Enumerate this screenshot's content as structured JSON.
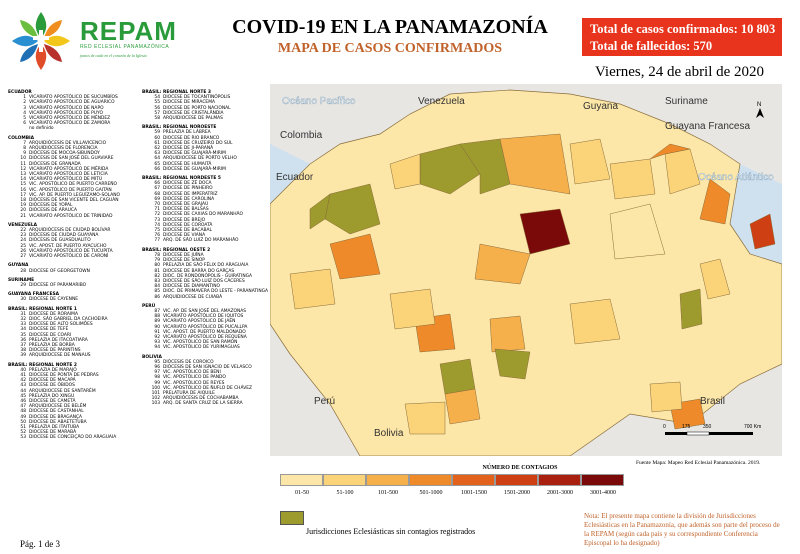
{
  "header": {
    "brand": "REPAM",
    "brand_subtitle": "RED ECLESIAL PANAMAZÓNICA",
    "brand_tagline": "juntos de cada en el corazón de la Iglesia",
    "title": "COVID-19 EN LA PANAMAZONÍA",
    "subtitle": "MAPA DE CASOS CONFIRMADOS",
    "total_cases": "Total de casos confirmados: 10 803",
    "total_deaths": "Total de fallecidos: 570",
    "date": "Viernes, 24 de abril de 2020"
  },
  "colors": {
    "brand_green": "#2a9b3a",
    "accent_red": "#e8341c",
    "subtitle_orange": "#c0622a",
    "no_case": "#9d9a2e"
  },
  "legend_list": {
    "col1": [
      {
        "type": "sec",
        "text": "ECUADOR"
      },
      {
        "n": "1",
        "t": "VICARIATO APOSTÓLICO DE SUCUMBÍOS"
      },
      {
        "n": "2",
        "t": "VICARIATO APOSTÓLICO DE AGUARICO"
      },
      {
        "n": "3",
        "t": "VICARIATO APOSTÓLICO DE NAPO"
      },
      {
        "n": "4",
        "t": "VICARIATO APOSTÓLICO DE PUYO"
      },
      {
        "n": "5",
        "t": "VICARIATO APOSTÓLICO DE MÉNDEZ"
      },
      {
        "n": "6",
        "t": "VICARIATO APOSTÓLICO DE ZAMORA"
      },
      {
        "n": "",
        "t": "no definido"
      },
      {
        "type": "sec",
        "text": "COLOMBIA"
      },
      {
        "n": "7",
        "t": "ARQUIDIÓCESIS DE VILLAVICENCIO"
      },
      {
        "n": "8",
        "t": "ARQUIDIÓCESIS DE FLORENCIA"
      },
      {
        "n": "9",
        "t": "DIÓCESIS DE MOCOA-SIBUNDOY"
      },
      {
        "n": "10",
        "t": "DIÓCESIS DE SAN JOSÉ DEL GUAVIARE"
      },
      {
        "n": "11",
        "t": "DIÓCESIS DE GRANADA"
      },
      {
        "n": "12",
        "t": "VICARIATO APOSTÓLICO DE MÉRIDA"
      },
      {
        "n": "13",
        "t": "VICARIATO APOSTÓLICO DE LETICIA"
      },
      {
        "n": "14",
        "t": "VICARIATO APOSTÓLICO DE MITÚ"
      },
      {
        "n": "15",
        "t": "VIC. APOSTÓLICO DE PUERTO CARREÑO"
      },
      {
        "n": "16",
        "t": "VIC. APOSTÓLICO DE PUERTO GAITÁN"
      },
      {
        "n": "17",
        "t": "VIC. AP. DE PUERTO LEGUÍZAMO-SOLANO"
      },
      {
        "n": "18",
        "t": "DIÓCESIS DE SAN VICENTE DEL CAGUÁN"
      },
      {
        "n": "19",
        "t": "DIÓCESIS DE YOPAL"
      },
      {
        "n": "20",
        "t": "DIÓCESIS DE ARAUCA"
      },
      {
        "n": "21",
        "t": "VICARIATO APOSTÓLICO DE TRINIDAD"
      },
      {
        "type": "sec",
        "text": "VENEZUELA"
      },
      {
        "n": "22",
        "t": "ARQUIDIÓCESIS DE CIUDAD BOLÍVAR"
      },
      {
        "n": "23",
        "t": "DIÓCESIS DE CIUDAD GUAYANA"
      },
      {
        "n": "24",
        "t": "DIÓCESIS DE GUASDUALITO"
      },
      {
        "n": "25",
        "t": "VIC. APOST. DE PUERTO AYACUCHO"
      },
      {
        "n": "26",
        "t": "VICARIATO APOSTÓLICO DE TUCUPITA"
      },
      {
        "n": "27",
        "t": "VICARIATO APOSTÓLICO DE CARONÍ"
      },
      {
        "type": "sec",
        "text": "GUYANA"
      },
      {
        "n": "28",
        "t": "DIOCESE OF GEORGETOWN"
      },
      {
        "type": "sec",
        "text": "SURINAME"
      },
      {
        "n": "29",
        "t": "DIOCESE OF PARAMARIBO"
      },
      {
        "type": "sec",
        "text": "GUAYANA FRANCESA"
      },
      {
        "n": "30",
        "t": "DIOCESE DE CAYENNE"
      },
      {
        "type": "sec",
        "text": "BRASIL: REGIONAL NORTE 1"
      },
      {
        "n": "31",
        "t": "DIOCESE DE RORAIMA"
      },
      {
        "n": "32",
        "t": "DIOC. SÃO GABRIEL DA CACHOEIRA"
      },
      {
        "n": "33",
        "t": "DIOCESE DE ALTO SOLIMÕES"
      },
      {
        "n": "34",
        "t": "DIOCESE DE TEFÉ"
      },
      {
        "n": "35",
        "t": "DIOCESE DE COARI"
      },
      {
        "n": "36",
        "t": "PRELAZIA DE ITACOATIARA"
      },
      {
        "n": "37",
        "t": "PRELAZIA DE BORBA"
      },
      {
        "n": "38",
        "t": "DIOCESE DE PARINTINS"
      },
      {
        "n": "39",
        "t": "ARQUIDIOCESE DE MANAUS"
      },
      {
        "type": "sec",
        "text": "BRASIL: REGIONAL NORTE 2"
      },
      {
        "n": "40",
        "t": "PRELAZIA DE MARAJÓ"
      },
      {
        "n": "41",
        "t": "DIOCESE DE PONTA DE PEDRAS"
      },
      {
        "n": "42",
        "t": "DIOCESE DE MACAPÁ"
      },
      {
        "n": "43",
        "t": "DIOCESE DE ÓBIDOS"
      },
      {
        "n": "44",
        "t": "ARQUIDIOCESE DE SANTARÉM"
      },
      {
        "n": "45",
        "t": "PRELAZIA DO XINGU"
      },
      {
        "n": "46",
        "t": "DIOCESE DE CAMETÁ"
      },
      {
        "n": "47",
        "t": "ARQUIDIOCESE DE BELÉM"
      },
      {
        "n": "48",
        "t": "DIOCESE DE CASTANHAL"
      },
      {
        "n": "49",
        "t": "DIOCESE DE BRAGANÇA"
      },
      {
        "n": "50",
        "t": "DIOCESE DE ABAETETUBA"
      },
      {
        "n": "51",
        "t": "PRELAZIA DE ITAITUBA"
      },
      {
        "n": "52",
        "t": "DIOCESE DE MARABÁ"
      },
      {
        "n": "53",
        "t": "DIOCESE DE CONCEIÇÃO DO ARAGUAIA"
      }
    ],
    "col2": [
      {
        "type": "sec",
        "text": "BRASIL: REGIONAL NORTE 3"
      },
      {
        "n": "54",
        "t": "DIOCESE DE TOCANTINÓPOLIS"
      },
      {
        "n": "55",
        "t": "DIOCESE DE MIRACEMA"
      },
      {
        "n": "56",
        "t": "DIOCESE DE PORTO NACIONAL"
      },
      {
        "n": "57",
        "t": "DIOCESE DE CRISTALÂNDIA"
      },
      {
        "n": "58",
        "t": "ARQUIDIOCESE DE PALMAS"
      },
      {
        "type": "sec",
        "text": "BRASIL: REGIONAL NOROESTE"
      },
      {
        "n": "59",
        "t": "PRELAZIA DE LÁBREA"
      },
      {
        "n": "60",
        "t": "DIOCESE DE RIO BRANCO"
      },
      {
        "n": "61",
        "t": "DIOCESE DE CRUZEIRO DO SUL"
      },
      {
        "n": "62",
        "t": "DIOCESE DE JI-PARANÁ"
      },
      {
        "n": "63",
        "t": "DIOCESE DE GUAJARÁ-MIRIM"
      },
      {
        "n": "64",
        "t": "ARQUIDIOCESE DE PORTO VELHO"
      },
      {
        "n": "65",
        "t": "DIOCESE DE HUMAITÁ"
      },
      {
        "n": "66",
        "t": "DIOCESE DE GUAJARÁ-MIRIM"
      },
      {
        "type": "sec",
        "text": "BRASIL: REGIONAL NORDESTE 5"
      },
      {
        "n": "66",
        "t": "DIOCESE DE ZÉ DOCA"
      },
      {
        "n": "67",
        "t": "DIOCESE DE PINHEIRO"
      },
      {
        "n": "68",
        "t": "DIOCESE DE IMPERATRIZ"
      },
      {
        "n": "69",
        "t": "DIOCESE DE CAROLINA"
      },
      {
        "n": "70",
        "t": "DIOCESE DE GRAJAÚ"
      },
      {
        "n": "71",
        "t": "DIOCESE DE BALSAS"
      },
      {
        "n": "72",
        "t": "DIOCESE DE CAXIAS DO MARANHÃO"
      },
      {
        "n": "73",
        "t": "DIOCESE DE BREJO"
      },
      {
        "n": "74",
        "t": "DIOCESE DE COROATÁ"
      },
      {
        "n": "75",
        "t": "DIOCESE DE BACABAL"
      },
      {
        "n": "76",
        "t": "DIOCESE DE VIANA"
      },
      {
        "n": "77",
        "t": "ARQ. DE SÃO LUIZ DO MARANHÃO"
      },
      {
        "type": "sec",
        "text": "BRASIL: REGIONAL OESTE 2"
      },
      {
        "n": "78",
        "t": "DIOCESE DE JUÍNA"
      },
      {
        "n": "79",
        "t": "DIOCESE DE SINOP"
      },
      {
        "n": "80",
        "t": "PRELAZIA DE SÃO FÉLIX DO ARAGUAIA"
      },
      {
        "n": "81",
        "t": "DIOCESE DE BARRA DO GARÇAS"
      },
      {
        "n": "82",
        "t": "DIOC. DE RONDONÓPOLIS - GUIRATINGA"
      },
      {
        "n": "83",
        "t": "DIOCESE DE SÃO LUIZ DOS CÁCERES"
      },
      {
        "n": "84",
        "t": "DIOCESE DE DIAMANTINO"
      },
      {
        "n": "85",
        "t": "DIOC. DE PRIMAVERA DO LESTE - PARANATINGA"
      },
      {
        "n": "86",
        "t": "ARQUIDIOCESE DE CUIABÁ"
      },
      {
        "type": "sec",
        "text": "PERÚ"
      },
      {
        "n": "87",
        "t": "VIC. AP. DE SAN JOSÉ DEL AMAZONAS"
      },
      {
        "n": "88",
        "t": "VICARIATO APOSTÓLICO DE IQUITOS"
      },
      {
        "n": "89",
        "t": "VICARIATO APOSTÓLICO DE JAÉN"
      },
      {
        "n": "90",
        "t": "VICARIATO APOSTÓLICO DE PUCALLPA"
      },
      {
        "n": "91",
        "t": "VIC. APOST. DE PUERTO MALDONADO"
      },
      {
        "n": "92",
        "t": "VICARIATO APOSTÓLICO DE REQUENA"
      },
      {
        "n": "93",
        "t": "VIC. APOSTÓLICO DE SAN RAMÓN"
      },
      {
        "n": "94",
        "t": "VIC. APOSTÓLICO DE YURIMAGUAS"
      },
      {
        "type": "sec",
        "text": "BOLIVIA"
      },
      {
        "n": "95",
        "t": "DIÓCESIS DE COROICO"
      },
      {
        "n": "96",
        "t": "DIÓCESIS DE SAN IGNACIO DE VELASCO"
      },
      {
        "n": "97",
        "t": "VIC. APOSTÓLICO DE BENI"
      },
      {
        "n": "98",
        "t": "VIC. APOSTÓLICO DE PANDO"
      },
      {
        "n": "99",
        "t": "VIC. APOSTÓLICO DE REYES"
      },
      {
        "n": "100",
        "t": "VIC. APOSTÓLICO DE ÑUFLO DE CHÁVEZ"
      },
      {
        "n": "101",
        "t": "PRELATURA DE AIQUILE"
      },
      {
        "n": "102",
        "t": "ARQUIDIÓCESIS DE COCHABAMBA"
      },
      {
        "n": "103",
        "t": "ARQ. DE SANTA CRUZ DE LA SIERRA"
      }
    ]
  },
  "map": {
    "labels": {
      "pacific": "Océano Pacífico",
      "atlantic": "Océano Atlántico",
      "venezuela": "Venezuela",
      "guyana": "Guyana",
      "suriname": "Suriname",
      "french_guiana": "Guayana Francesa",
      "colombia": "Colombia",
      "ecuador": "Ecuador",
      "peru": "Perú",
      "bolivia": "Bolivia",
      "brasil": "Brasil"
    },
    "scale_ticks": [
      "0",
      "175",
      "350",
      "700 Km"
    ],
    "north": "N"
  },
  "contagion_legend": {
    "title": "NÚMERO DE CONTAGIOS",
    "classes": [
      {
        "label": "01-50",
        "color": "#fde7a8"
      },
      {
        "label": "51-100",
        "color": "#fbd47a"
      },
      {
        "label": "101-500",
        "color": "#f6b04b"
      },
      {
        "label": "501-1000",
        "color": "#ef8a2a"
      },
      {
        "label": "1001-1500",
        "color": "#e2621b"
      },
      {
        "label": "1501-2000",
        "color": "#cf3f14"
      },
      {
        "label": "2001-3000",
        "color": "#a9200f"
      },
      {
        "label": "3001-4000",
        "color": "#7a0a0a"
      }
    ],
    "no_case_label": "Jurisdicciones Eclesiásticas sin contagios registrados"
  },
  "footer": {
    "source": "Fuente Mapa: Mapeo Red Eclesial Panamazónica. 2019.",
    "note": "Nota: El presente mapa contiene la división de Jurisdicciones Eclesiásticas en la Panamazonía, que además son parte del proceso de la REPAM  (según cada país y su correspondiente Conferencia Episcopal lo ha designado)",
    "page": "Pág. 1 de 3"
  }
}
